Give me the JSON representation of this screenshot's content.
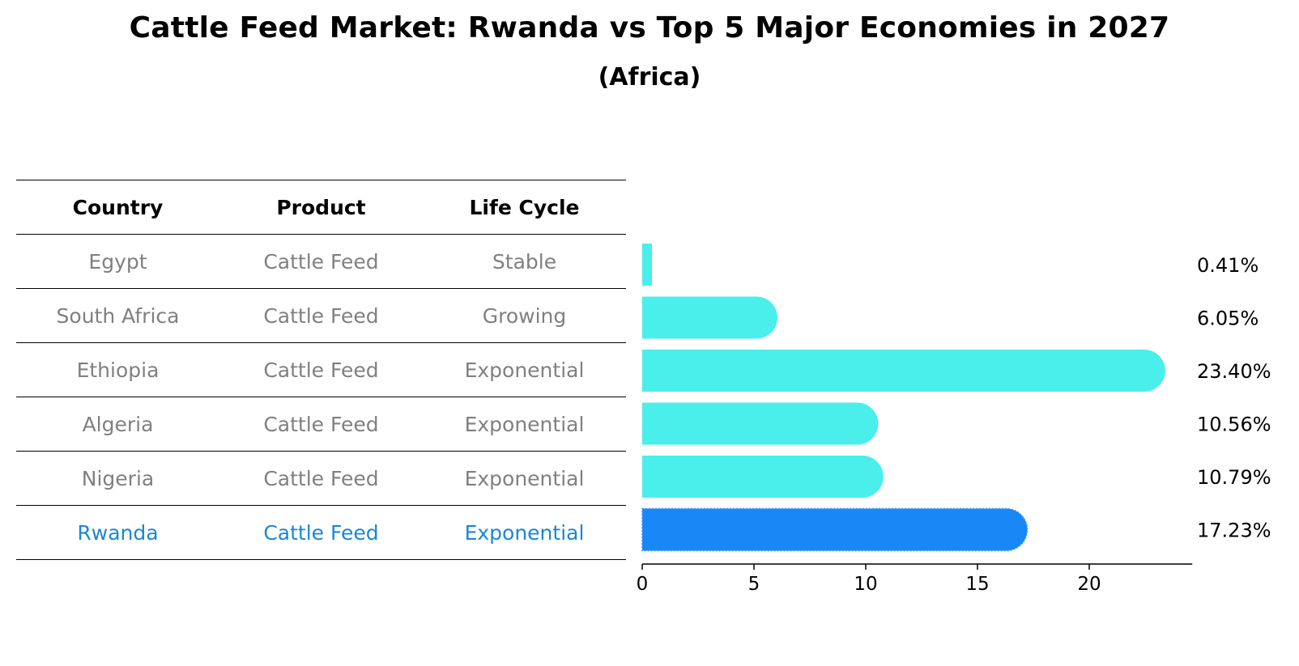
{
  "title": "Cattle Feed Market: Rwanda vs Top 5 Major Economies in 2027",
  "subtitle": "(Africa)",
  "table": {
    "headers": [
      "Country",
      "Product",
      "Life Cycle"
    ],
    "rows": [
      {
        "country": "Egypt",
        "product": "Cattle Feed",
        "life_cycle": "Stable"
      },
      {
        "country": "South Africa",
        "product": "Cattle Feed",
        "life_cycle": "Growing"
      },
      {
        "country": "Ethiopia",
        "product": "Cattle Feed",
        "life_cycle": "Exponential"
      },
      {
        "country": "Algeria",
        "product": "Cattle Feed",
        "life_cycle": "Exponential"
      },
      {
        "country": "Nigeria",
        "product": "Cattle Feed",
        "life_cycle": "Exponential"
      },
      {
        "country": "Rwanda",
        "product": "Cattle Feed",
        "life_cycle": "Exponential"
      }
    ]
  },
  "chart_data": {
    "type": "bar",
    "orientation": "horizontal",
    "categories": [
      "Egypt",
      "South Africa",
      "Ethiopia",
      "Algeria",
      "Nigeria",
      "Rwanda"
    ],
    "values": [
      0.41,
      6.05,
      23.4,
      10.56,
      10.79,
      17.23
    ],
    "value_labels": [
      "0.41%",
      "6.05%",
      "23.40%",
      "10.56%",
      "10.79%",
      "17.23%"
    ],
    "highlight": "Rwanda",
    "xticks": [
      "0",
      "5",
      "10",
      "15",
      "20"
    ],
    "xlim": [
      0,
      24.5
    ],
    "xlabel": "",
    "ylabel": "",
    "colors": {
      "bar": "#4aeeeb",
      "highlight": "#1a87f6",
      "highlight_text": "#1a87d6",
      "axis": "#000000"
    }
  }
}
